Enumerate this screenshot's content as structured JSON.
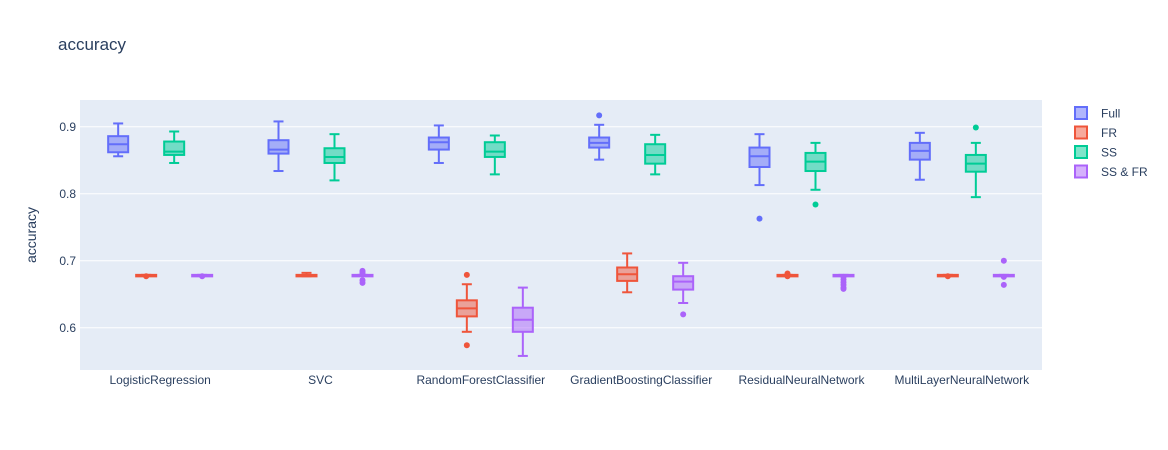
{
  "chart_data": {
    "type": "box",
    "title": "accuracy",
    "xlabel": "",
    "ylabel": "accuracy",
    "ylim": [
      0.537,
      0.94
    ],
    "yticks": [
      0.6,
      0.7,
      0.8,
      0.9
    ],
    "ytick_labels": [
      "0.6",
      "0.7",
      "0.8",
      "0.9"
    ],
    "grid": true,
    "legend_position": "top-right",
    "categories": [
      "LogisticRegression",
      "SVC",
      "RandomForestClassifier",
      "GradientBoostingClassifier",
      "ResidualNeuralNetwork",
      "MultiLayerNeuralNetwork"
    ],
    "series": [
      {
        "name": "Full",
        "color": "#636efa",
        "boxes": [
          {
            "min": 0.856,
            "q1": 0.862,
            "median": 0.874,
            "q3": 0.886,
            "max": 0.905,
            "outliers": []
          },
          {
            "min": 0.834,
            "q1": 0.86,
            "median": 0.866,
            "q3": 0.88,
            "max": 0.908,
            "outliers": []
          },
          {
            "min": 0.846,
            "q1": 0.866,
            "median": 0.877,
            "q3": 0.884,
            "max": 0.902,
            "outliers": []
          },
          {
            "min": 0.851,
            "q1": 0.869,
            "median": 0.876,
            "q3": 0.884,
            "max": 0.903,
            "outliers": [
              0.917
            ]
          },
          {
            "min": 0.813,
            "q1": 0.84,
            "median": 0.856,
            "q3": 0.869,
            "max": 0.889,
            "outliers": [
              0.763
            ]
          },
          {
            "min": 0.821,
            "q1": 0.851,
            "median": 0.864,
            "q3": 0.876,
            "max": 0.891,
            "outliers": []
          }
        ]
      },
      {
        "name": "FR",
        "color": "#ef553b",
        "boxes": [
          {
            "min": 0.678,
            "q1": 0.678,
            "median": 0.678,
            "q3": 0.679,
            "max": 0.679,
            "outliers": [
              0.677
            ]
          },
          {
            "min": 0.677,
            "q1": 0.677,
            "median": 0.678,
            "q3": 0.679,
            "max": 0.682,
            "outliers": []
          },
          {
            "min": 0.594,
            "q1": 0.617,
            "median": 0.629,
            "q3": 0.641,
            "max": 0.665,
            "outliers": [
              0.679,
              0.574
            ]
          },
          {
            "min": 0.653,
            "q1": 0.67,
            "median": 0.68,
            "q3": 0.69,
            "max": 0.711,
            "outliers": []
          },
          {
            "min": 0.678,
            "q1": 0.678,
            "median": 0.678,
            "q3": 0.679,
            "max": 0.679,
            "outliers": [
              0.681,
              0.677
            ]
          },
          {
            "min": 0.678,
            "q1": 0.678,
            "median": 0.678,
            "q3": 0.679,
            "max": 0.679,
            "outliers": [
              0.677
            ]
          }
        ]
      },
      {
        "name": "SS",
        "color": "#00cc96",
        "boxes": [
          {
            "min": 0.846,
            "q1": 0.858,
            "median": 0.863,
            "q3": 0.878,
            "max": 0.893,
            "outliers": []
          },
          {
            "min": 0.82,
            "q1": 0.846,
            "median": 0.855,
            "q3": 0.868,
            "max": 0.889,
            "outliers": []
          },
          {
            "min": 0.829,
            "q1": 0.855,
            "median": 0.863,
            "q3": 0.877,
            "max": 0.887,
            "outliers": []
          },
          {
            "min": 0.829,
            "q1": 0.845,
            "median": 0.858,
            "q3": 0.874,
            "max": 0.888,
            "outliers": []
          },
          {
            "min": 0.806,
            "q1": 0.834,
            "median": 0.848,
            "q3": 0.861,
            "max": 0.876,
            "outliers": [
              0.784
            ]
          },
          {
            "min": 0.795,
            "q1": 0.833,
            "median": 0.845,
            "q3": 0.858,
            "max": 0.876,
            "outliers": [
              0.899
            ]
          }
        ]
      },
      {
        "name": "SS & FR",
        "color": "#ab63fa",
        "boxes": [
          {
            "min": 0.678,
            "q1": 0.678,
            "median": 0.678,
            "q3": 0.679,
            "max": 0.679,
            "outliers": [
              0.677
            ]
          },
          {
            "min": 0.678,
            "q1": 0.678,
            "median": 0.678,
            "q3": 0.679,
            "max": 0.679,
            "outliers": [
              0.685,
              0.683,
              0.681,
              0.671,
              0.667
            ]
          },
          {
            "min": 0.558,
            "q1": 0.594,
            "median": 0.612,
            "q3": 0.63,
            "max": 0.66,
            "outliers": []
          },
          {
            "min": 0.637,
            "q1": 0.657,
            "median": 0.669,
            "q3": 0.677,
            "max": 0.697,
            "outliers": [
              0.62
            ]
          },
          {
            "min": 0.678,
            "q1": 0.678,
            "median": 0.678,
            "q3": 0.679,
            "max": 0.679,
            "outliers": [
              0.676,
              0.672,
              0.668,
              0.664,
              0.66,
              0.658
            ]
          },
          {
            "min": 0.678,
            "q1": 0.678,
            "median": 0.678,
            "q3": 0.679,
            "max": 0.679,
            "outliers": [
              0.7,
              0.676,
              0.664
            ]
          }
        ]
      }
    ]
  }
}
